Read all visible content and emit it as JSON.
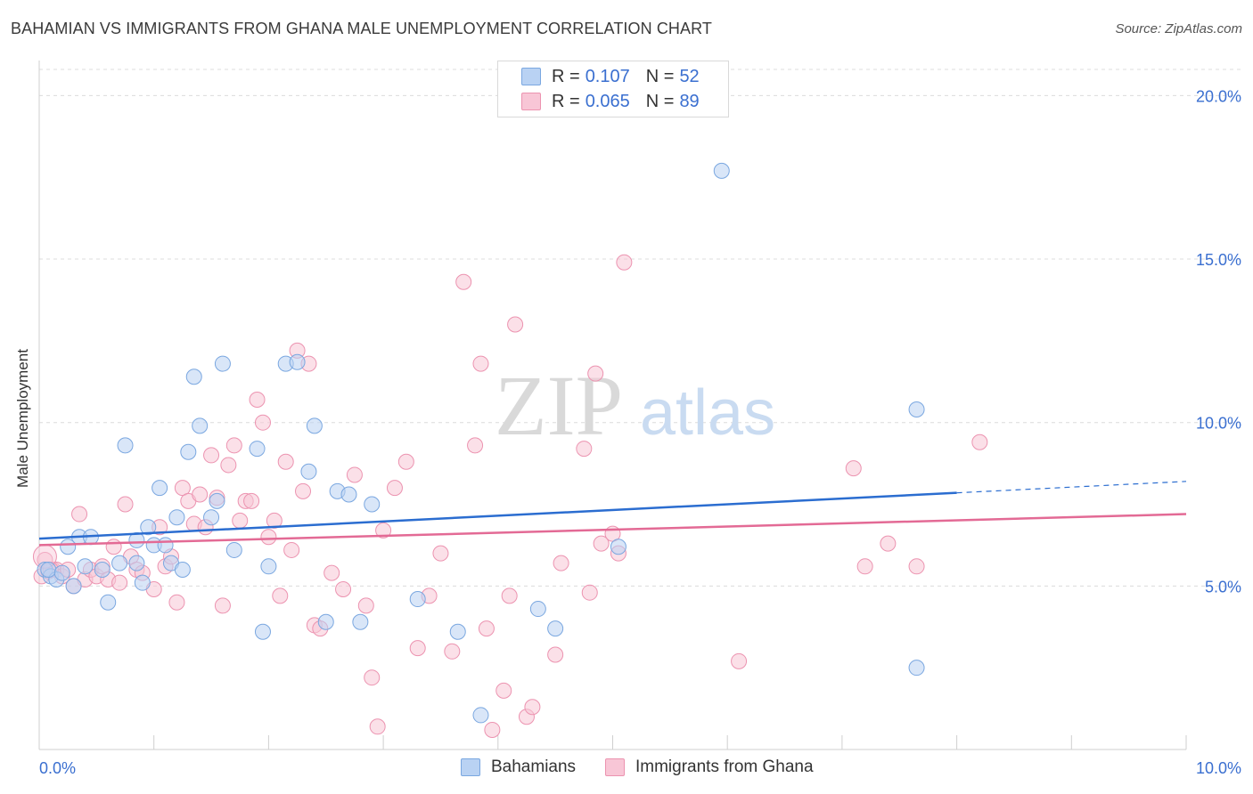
{
  "title": "BAHAMIAN VS IMMIGRANTS FROM GHANA MALE UNEMPLOYMENT CORRELATION CHART",
  "source": "Source: ZipAtlas.com",
  "watermark": {
    "zip": "ZIP",
    "atlas": "atlas"
  },
  "legend_top": {
    "rows": [
      {
        "r_label": "R =",
        "r_value": "0.107",
        "n_label": "N =",
        "n_value": "52"
      },
      {
        "r_label": "R =",
        "r_value": "0.065",
        "n_label": "N =",
        "n_value": "89"
      }
    ]
  },
  "legend_bottom": [
    "Bahamians",
    "Immigrants from Ghana"
  ],
  "colors": {
    "blue_fill": "#b9d2f3",
    "blue_stroke": "#7aa7e0",
    "blue_line": "#2b6dd0",
    "pink_fill": "#f8c6d6",
    "pink_stroke": "#ec93b0",
    "pink_line": "#e36a95",
    "grid": "#dcdcdc",
    "tick_text": "#3a6fd0"
  },
  "chart_data": {
    "type": "scatter",
    "title": "BAHAMIAN VS IMMIGRANTS FROM GHANA MALE UNEMPLOYMENT CORRELATION CHART",
    "xlabel": "",
    "ylabel": "Male Unemployment",
    "xlim": [
      0,
      10
    ],
    "ylim": [
      0,
      20.8
    ],
    "x_tick_labels": [
      "0.0%",
      "10.0%"
    ],
    "y_ticks": [
      5,
      10,
      15,
      20
    ],
    "y_tick_labels": [
      "5.0%",
      "10.0%",
      "15.0%",
      "20.0%"
    ],
    "grid": true,
    "legend_position": "top-center",
    "series": [
      {
        "name": "Bahamians",
        "r": 0.107,
        "n": 52,
        "trend": {
          "x0": 0,
          "y0": 6.45,
          "x1": 8.0,
          "y1": 7.85,
          "dashed_to_x": 10,
          "dashed_to_y": 8.2
        },
        "points": [
          [
            0.05,
            5.5
          ],
          [
            0.1,
            5.3
          ],
          [
            0.15,
            5.2
          ],
          [
            0.25,
            6.2
          ],
          [
            0.3,
            5.0
          ],
          [
            0.35,
            6.5
          ],
          [
            0.4,
            5.6
          ],
          [
            0.45,
            6.5
          ],
          [
            0.55,
            5.5
          ],
          [
            0.6,
            4.5
          ],
          [
            0.7,
            5.7
          ],
          [
            0.75,
            9.3
          ],
          [
            0.85,
            5.7
          ],
          [
            0.85,
            6.4
          ],
          [
            0.9,
            5.1
          ],
          [
            0.95,
            6.8
          ],
          [
            1.0,
            6.25
          ],
          [
            1.05,
            8.0
          ],
          [
            1.1,
            6.25
          ],
          [
            1.15,
            5.7
          ],
          [
            1.2,
            7.1
          ],
          [
            1.25,
            5.5
          ],
          [
            1.3,
            9.1
          ],
          [
            1.35,
            11.4
          ],
          [
            1.4,
            9.9
          ],
          [
            1.5,
            7.1
          ],
          [
            1.55,
            7.6
          ],
          [
            1.6,
            11.8
          ],
          [
            1.7,
            6.1
          ],
          [
            1.9,
            9.2
          ],
          [
            1.95,
            3.6
          ],
          [
            2.0,
            5.6
          ],
          [
            2.15,
            11.8
          ],
          [
            2.25,
            11.85
          ],
          [
            2.35,
            8.5
          ],
          [
            2.4,
            9.9
          ],
          [
            2.5,
            3.9
          ],
          [
            2.6,
            7.9
          ],
          [
            2.7,
            7.8
          ],
          [
            2.8,
            3.9
          ],
          [
            2.9,
            7.5
          ],
          [
            3.3,
            4.6
          ],
          [
            3.65,
            3.6
          ],
          [
            3.85,
            1.05
          ],
          [
            4.35,
            4.3
          ],
          [
            4.5,
            3.7
          ],
          [
            5.05,
            6.2
          ],
          [
            5.95,
            17.7
          ],
          [
            7.65,
            2.5
          ],
          [
            7.65,
            10.4
          ],
          [
            0.08,
            5.5
          ],
          [
            0.2,
            5.4
          ]
        ]
      },
      {
        "name": "Immigrants from Ghana",
        "r": 0.065,
        "n": 89,
        "trend": {
          "x0": 0,
          "y0": 6.25,
          "x1": 10,
          "y1": 7.2
        },
        "points": [
          [
            0.02,
            5.3
          ],
          [
            0.05,
            5.8
          ],
          [
            0.08,
            5.45
          ],
          [
            0.12,
            5.5
          ],
          [
            0.15,
            5.5
          ],
          [
            0.2,
            5.3
          ],
          [
            0.25,
            5.5
          ],
          [
            0.3,
            5.0
          ],
          [
            0.35,
            7.2
          ],
          [
            0.4,
            5.2
          ],
          [
            0.45,
            5.5
          ],
          [
            0.5,
            5.3
          ],
          [
            0.55,
            5.6
          ],
          [
            0.6,
            5.2
          ],
          [
            0.65,
            6.2
          ],
          [
            0.7,
            5.1
          ],
          [
            0.75,
            7.5
          ],
          [
            0.8,
            5.9
          ],
          [
            0.85,
            5.5
          ],
          [
            0.9,
            5.4
          ],
          [
            1.0,
            4.9
          ],
          [
            1.05,
            6.8
          ],
          [
            1.1,
            5.6
          ],
          [
            1.15,
            5.9
          ],
          [
            1.2,
            4.5
          ],
          [
            1.25,
            8.0
          ],
          [
            1.3,
            7.6
          ],
          [
            1.35,
            6.9
          ],
          [
            1.4,
            7.8
          ],
          [
            1.45,
            6.8
          ],
          [
            1.5,
            9.0
          ],
          [
            1.55,
            7.7
          ],
          [
            1.6,
            4.4
          ],
          [
            1.65,
            8.7
          ],
          [
            1.7,
            9.3
          ],
          [
            1.75,
            7.0
          ],
          [
            1.8,
            7.6
          ],
          [
            1.85,
            7.6
          ],
          [
            1.9,
            10.7
          ],
          [
            1.95,
            10.0
          ],
          [
            2.0,
            6.5
          ],
          [
            2.05,
            7.0
          ],
          [
            2.1,
            4.7
          ],
          [
            2.15,
            8.8
          ],
          [
            2.2,
            6.1
          ],
          [
            2.25,
            12.2
          ],
          [
            2.3,
            7.9
          ],
          [
            2.35,
            11.8
          ],
          [
            2.4,
            3.8
          ],
          [
            2.45,
            3.7
          ],
          [
            2.55,
            5.4
          ],
          [
            2.65,
            4.9
          ],
          [
            2.75,
            8.4
          ],
          [
            2.85,
            4.4
          ],
          [
            2.9,
            2.2
          ],
          [
            2.95,
            0.7
          ],
          [
            3.0,
            6.7
          ],
          [
            3.1,
            8.0
          ],
          [
            3.2,
            8.8
          ],
          [
            3.3,
            3.1
          ],
          [
            3.4,
            4.7
          ],
          [
            3.5,
            6.0
          ],
          [
            3.6,
            3.0
          ],
          [
            3.7,
            14.3
          ],
          [
            3.8,
            9.3
          ],
          [
            3.85,
            11.8
          ],
          [
            3.9,
            3.7
          ],
          [
            3.95,
            0.6
          ],
          [
            4.05,
            1.8
          ],
          [
            4.1,
            4.7
          ],
          [
            4.15,
            13.0
          ],
          [
            4.25,
            1.0
          ],
          [
            4.3,
            1.3
          ],
          [
            4.5,
            2.9
          ],
          [
            4.55,
            5.7
          ],
          [
            4.75,
            9.2
          ],
          [
            4.8,
            4.8
          ],
          [
            4.85,
            11.5
          ],
          [
            4.9,
            6.3
          ],
          [
            5.0,
            6.6
          ],
          [
            5.05,
            6.0
          ],
          [
            5.1,
            14.9
          ],
          [
            6.1,
            2.7
          ],
          [
            7.1,
            8.6
          ],
          [
            7.2,
            5.6
          ],
          [
            7.4,
            6.3
          ],
          [
            7.65,
            5.6
          ],
          [
            8.2,
            9.4
          ],
          [
            0.1,
            5.5
          ]
        ]
      }
    ]
  }
}
